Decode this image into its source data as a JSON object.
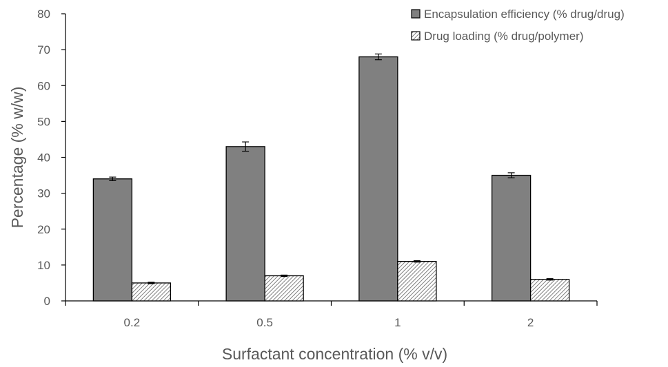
{
  "chart_data": {
    "type": "bar",
    "title": "",
    "xlabel": "Surfactant concentration (% v/v)",
    "ylabel": "Percentage (% w/w)",
    "categories": [
      "0.2",
      "0.5",
      "1",
      "2"
    ],
    "ylim": [
      0,
      80
    ],
    "yticks": [
      0,
      10,
      20,
      30,
      40,
      50,
      60,
      70,
      80
    ],
    "grid": false,
    "legend_position": "top-right",
    "series": [
      {
        "name": "Encapsulation efficiency (% drug/drug)",
        "values": [
          34,
          43,
          68,
          35
        ],
        "error": [
          0.5,
          1.3,
          0.8,
          0.7
        ],
        "fill": "#808080",
        "pattern": "solid"
      },
      {
        "name": "Drug loading (% drug/polymer)",
        "values": [
          5,
          7,
          11,
          6
        ],
        "error": [
          0.2,
          0.2,
          0.2,
          0.2
        ],
        "fill": "#ffffff",
        "pattern": "diagonal-hatch"
      }
    ]
  }
}
